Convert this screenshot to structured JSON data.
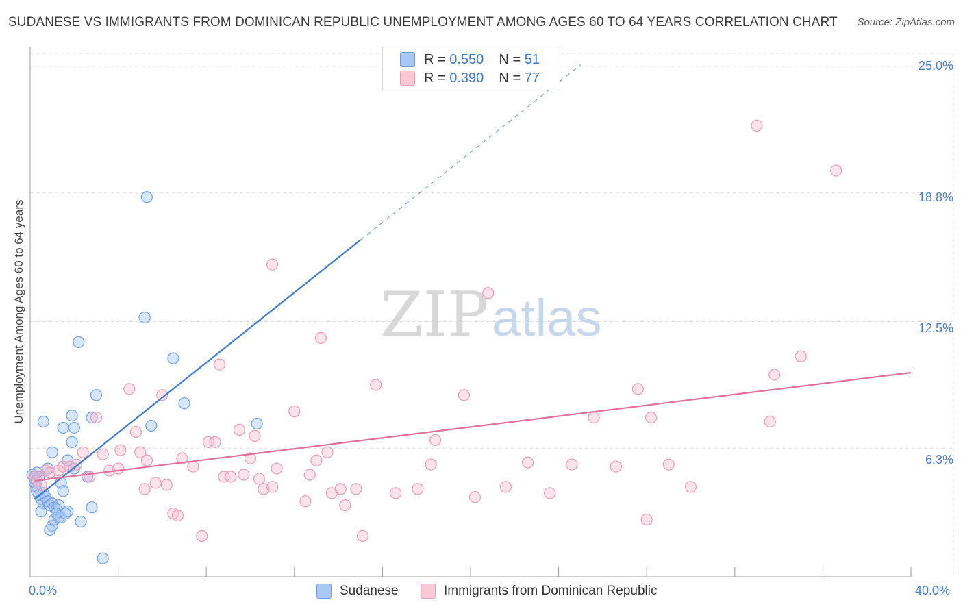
{
  "title": "SUDANESE VS IMMIGRANTS FROM DOMINICAN REPUBLIC UNEMPLOYMENT AMONG AGES 60 TO 64 YEARS CORRELATION CHART",
  "source": "Source: ZipAtlas.com",
  "watermark": {
    "zip": "ZIP",
    "atlas": "atlas"
  },
  "legend": {
    "rows": [
      {
        "r_label": "R = ",
        "r_value": "0.550",
        "n_label": "N = ",
        "n_value": "51"
      },
      {
        "r_label": "R = ",
        "r_value": "0.390",
        "n_label": "N = ",
        "n_value": "77"
      }
    ]
  },
  "colors": {
    "blue": "#3a78d4",
    "blue_fill": "#a9c8f3",
    "pink": "#e0709a",
    "pink_fill": "#f6b8cc",
    "grid": "#e0e0e0",
    "tick_text": "#4a7fc8"
  },
  "chart_data": {
    "type": "scatter",
    "title": "SUDANESE VS IMMIGRANTS FROM DOMINICAN REPUBLIC UNEMPLOYMENT AMONG AGES 60 TO 64 YEARS CORRELATION CHART",
    "xlabel": "",
    "ylabel": "Unemployment Among Ages 60 to 64 years",
    "xlim": [
      0,
      40
    ],
    "ylim": [
      0,
      25
    ],
    "x_tick_labels": [
      "0.0%",
      "40.0%"
    ],
    "y_ticks": [
      6.3,
      12.5,
      18.8,
      25.0
    ],
    "y_tick_labels": [
      "6.3%",
      "12.5%",
      "18.8%",
      "25.0%"
    ],
    "series": [
      {
        "name": "Sudanese",
        "color": "blue",
        "r": 0.55,
        "n": 51,
        "trend": {
          "x0": 0.2,
          "y0": 3.8,
          "x1": 15.0,
          "y1": 16.5,
          "dash_to_x": 25.0
        },
        "points": [
          [
            0.1,
            5.0
          ],
          [
            0.2,
            4.8
          ],
          [
            0.2,
            4.6
          ],
          [
            0.3,
            4.4
          ],
          [
            0.3,
            4.2
          ],
          [
            0.4,
            4.0
          ],
          [
            0.5,
            3.8
          ],
          [
            0.6,
            3.6
          ],
          [
            0.3,
            5.1
          ],
          [
            0.4,
            4.9
          ],
          [
            0.6,
            4.1
          ],
          [
            0.7,
            3.9
          ],
          [
            0.8,
            3.7
          ],
          [
            0.5,
            3.2
          ],
          [
            0.9,
            3.5
          ],
          [
            1.0,
            3.6
          ],
          [
            1.1,
            3.4
          ],
          [
            1.2,
            3.3
          ],
          [
            1.3,
            3.5
          ],
          [
            0.8,
            5.3
          ],
          [
            1.4,
            4.6
          ],
          [
            1.5,
            4.2
          ],
          [
            1.0,
            2.5
          ],
          [
            0.9,
            2.3
          ],
          [
            1.1,
            2.8
          ],
          [
            1.3,
            2.9
          ],
          [
            1.4,
            2.9
          ],
          [
            2.3,
            2.7
          ],
          [
            2.8,
            3.4
          ],
          [
            1.2,
            3.1
          ],
          [
            1.7,
            3.2
          ],
          [
            1.6,
            3.1
          ],
          [
            0.6,
            7.6
          ],
          [
            1.0,
            6.1
          ],
          [
            1.5,
            7.3
          ],
          [
            1.9,
            7.9
          ],
          [
            2.0,
            7.3
          ],
          [
            1.7,
            5.7
          ],
          [
            2.0,
            5.3
          ],
          [
            1.9,
            6.6
          ],
          [
            2.6,
            4.9
          ],
          [
            3.0,
            8.9
          ],
          [
            2.2,
            11.5
          ],
          [
            2.8,
            7.8
          ],
          [
            5.3,
            18.6
          ],
          [
            5.2,
            12.7
          ],
          [
            6.5,
            10.7
          ],
          [
            7.0,
            8.5
          ],
          [
            5.5,
            7.4
          ],
          [
            10.3,
            7.5
          ],
          [
            3.3,
            0.9
          ]
        ]
      },
      {
        "name": "Immigrants from Dominican Republic",
        "color": "pink",
        "r": 0.39,
        "n": 77,
        "trend": {
          "x0": 0.2,
          "y0": 4.7,
          "x1": 40.0,
          "y1": 10.0
        },
        "points": [
          [
            0.2,
            4.9
          ],
          [
            0.3,
            4.7
          ],
          [
            0.5,
            4.5
          ],
          [
            0.7,
            5.2
          ],
          [
            0.9,
            5.1
          ],
          [
            1.3,
            5.2
          ],
          [
            1.5,
            5.4
          ],
          [
            1.8,
            5.4
          ],
          [
            2.1,
            5.5
          ],
          [
            2.7,
            4.9
          ],
          [
            2.4,
            6.1
          ],
          [
            3.3,
            6.0
          ],
          [
            3.6,
            5.2
          ],
          [
            4.0,
            5.3
          ],
          [
            4.1,
            6.2
          ],
          [
            3.0,
            7.8
          ],
          [
            4.5,
            9.2
          ],
          [
            4.8,
            7.1
          ],
          [
            5.0,
            6.1
          ],
          [
            5.2,
            4.3
          ],
          [
            5.3,
            5.7
          ],
          [
            5.7,
            4.6
          ],
          [
            6.0,
            8.9
          ],
          [
            6.2,
            4.5
          ],
          [
            6.5,
            3.1
          ],
          [
            6.7,
            3.0
          ],
          [
            6.9,
            5.8
          ],
          [
            7.4,
            5.4
          ],
          [
            7.8,
            2.0
          ],
          [
            8.1,
            6.6
          ],
          [
            8.4,
            6.6
          ],
          [
            8.6,
            10.4
          ],
          [
            8.8,
            4.9
          ],
          [
            9.1,
            4.9
          ],
          [
            9.5,
            7.2
          ],
          [
            9.7,
            5.0
          ],
          [
            10.0,
            5.8
          ],
          [
            10.2,
            6.9
          ],
          [
            10.4,
            4.8
          ],
          [
            10.6,
            4.3
          ],
          [
            11.0,
            4.4
          ],
          [
            11.2,
            5.3
          ],
          [
            11.0,
            15.3
          ],
          [
            12.0,
            8.1
          ],
          [
            12.5,
            3.7
          ],
          [
            12.7,
            5.0
          ],
          [
            13.0,
            5.7
          ],
          [
            13.2,
            11.7
          ],
          [
            13.5,
            6.1
          ],
          [
            13.7,
            4.1
          ],
          [
            14.1,
            4.3
          ],
          [
            14.3,
            3.5
          ],
          [
            14.8,
            4.3
          ],
          [
            15.1,
            2.0
          ],
          [
            15.7,
            9.4
          ],
          [
            16.6,
            4.1
          ],
          [
            17.6,
            4.3
          ],
          [
            18.2,
            5.5
          ],
          [
            18.4,
            6.7
          ],
          [
            19.7,
            8.9
          ],
          [
            20.2,
            3.9
          ],
          [
            20.8,
            13.9
          ],
          [
            21.6,
            4.4
          ],
          [
            22.6,
            5.6
          ],
          [
            23.6,
            4.1
          ],
          [
            24.6,
            5.5
          ],
          [
            25.6,
            7.8
          ],
          [
            26.6,
            5.4
          ],
          [
            27.6,
            9.2
          ],
          [
            28.0,
            2.8
          ],
          [
            28.2,
            7.8
          ],
          [
            29.0,
            5.5
          ],
          [
            30.0,
            4.4
          ],
          [
            33.0,
            22.1
          ],
          [
            33.6,
            7.6
          ],
          [
            33.8,
            9.9
          ],
          [
            35.0,
            10.8
          ],
          [
            36.6,
            19.9
          ]
        ]
      }
    ]
  },
  "bottom_legend": [
    {
      "label": "Sudanese",
      "color": "blue"
    },
    {
      "label": "Immigrants from Dominican Republic",
      "color": "pink"
    }
  ]
}
